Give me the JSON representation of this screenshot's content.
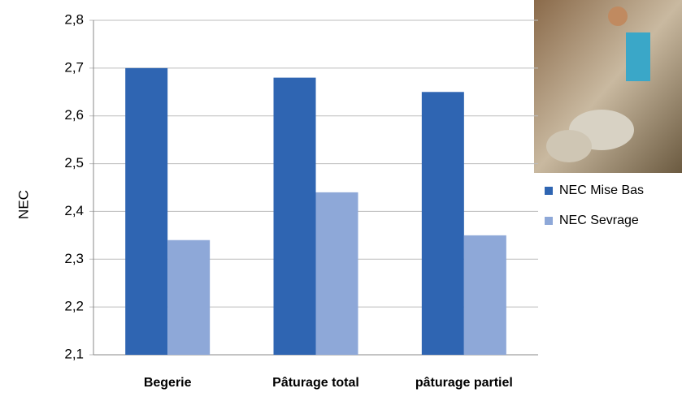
{
  "chart_data": {
    "type": "bar",
    "y_label": "NEC",
    "categories": [
      "Begerie",
      "Pâturage total",
      "pâturage partiel"
    ],
    "series": [
      {
        "name": "NEC Mise Bas",
        "color": "#2f65b2",
        "values": [
          2.7,
          2.68,
          2.65
        ]
      },
      {
        "name": "NEC Sevrage",
        "color": "#8ea8d8",
        "values": [
          2.34,
          2.44,
          2.35
        ]
      }
    ],
    "ylim": [
      2.1,
      2.8
    ],
    "yticks": [
      {
        "value": 2.1,
        "label": "2,1"
      },
      {
        "value": 2.2,
        "label": "2,2"
      },
      {
        "value": 2.3,
        "label": "2,3"
      },
      {
        "value": 2.4,
        "label": "2,4"
      },
      {
        "value": 2.5,
        "label": "2,5"
      },
      {
        "value": 2.6,
        "label": "2,6"
      },
      {
        "value": 2.7,
        "label": "2,7"
      },
      {
        "value": 2.8,
        "label": "2,8"
      }
    ],
    "grid": true
  }
}
